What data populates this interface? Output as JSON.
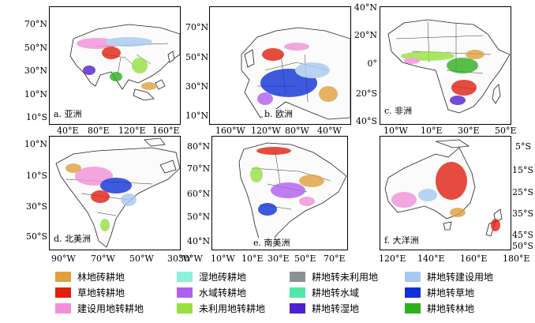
{
  "panels": {
    "a": {
      "label": "a. 亚洲",
      "lat_ticks": [
        "70°N",
        "50°N",
        "30°N",
        "10°N",
        "10°S"
      ],
      "lon_ticks": [
        "40°E",
        "80°E",
        "120°E",
        "160°E"
      ]
    },
    "b": {
      "label": "b. 欧洲",
      "lat_ticks": [
        "70°N",
        "50°N",
        "30°N",
        "10°N"
      ],
      "lon_ticks": [
        "160°W",
        "120°W",
        "80°W",
        "40°W"
      ]
    },
    "c": {
      "label": "c. 非洲",
      "lat_ticks": [
        "40°N",
        "20°N",
        "0°",
        "20°S",
        "40°S"
      ],
      "lon_ticks": [
        "10°W",
        "10°E",
        "30°E",
        "50°E"
      ]
    },
    "d": {
      "label": "d. 北美洲",
      "lat_ticks": [
        "10°N",
        "10°S",
        "30°S",
        "50°S"
      ],
      "lon_ticks": [
        "90°W",
        "70°W",
        "50°W",
        "30°W"
      ]
    },
    "e": {
      "label": "e. 南美洲",
      "lat_ticks": [
        "80°N",
        "70°N",
        "60°N",
        "50°N",
        "40°N"
      ],
      "lon_ticks": [
        "30°W",
        "10°W",
        "10°E",
        "30°E",
        "50°E",
        "70°E"
      ]
    },
    "f": {
      "label": "f. 大洋洲",
      "lat_ticks": [
        "5°S",
        "15°S",
        "25°S",
        "35°S",
        "45°S",
        "50°S"
      ],
      "lon_ticks": [
        "120°E",
        "140°E",
        "160°E",
        "180°E"
      ]
    }
  },
  "legend": [
    {
      "label": "林地砖耕地",
      "color": "#e0a040"
    },
    {
      "label": "湿地砖耕地",
      "color": "#8ef0d8"
    },
    {
      "label": "耕地转未利用地",
      "color": "#8a9296"
    },
    {
      "label": "耕地转建设用地",
      "color": "#a8c8f0"
    },
    {
      "label": "草地转耕地",
      "color": "#e02010"
    },
    {
      "label": "水域转耕地",
      "color": "#b060f0"
    },
    {
      "label": "耕地转水域",
      "color": "#50e8a8"
    },
    {
      "label": "耕地转草地",
      "color": "#1030d8"
    },
    {
      "label": "建设用地转耕地",
      "color": "#f090d8"
    },
    {
      "label": "未利用地转耕地",
      "color": "#98e040"
    },
    {
      "label": "耕地转湿地",
      "color": "#5020d0"
    },
    {
      "label": "耕地转林地",
      "color": "#30b020"
    }
  ]
}
